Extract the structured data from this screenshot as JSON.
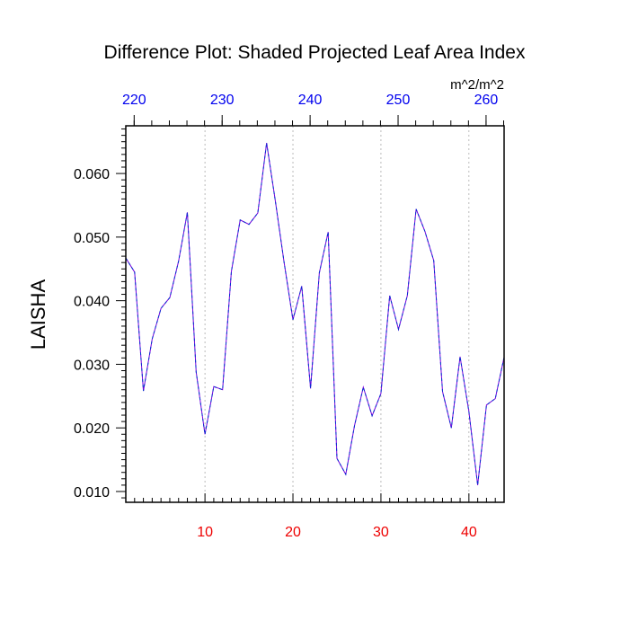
{
  "chart_data": {
    "type": "line",
    "title": "Difference Plot: Shaded Projected Leaf Area Index",
    "units": "m^2/m^2",
    "ylabel": "LAISHA",
    "xlim": [
      1,
      44
    ],
    "ylim": [
      0.0083,
      0.0675
    ],
    "x": [
      1,
      2,
      3,
      4,
      5,
      6,
      7,
      8,
      9,
      10,
      11,
      12,
      13,
      14,
      15,
      16,
      17,
      18,
      19,
      20,
      21,
      22,
      23,
      24,
      25,
      26,
      27,
      28,
      29,
      30,
      31,
      32,
      33,
      34,
      35,
      36,
      37,
      38,
      39,
      40,
      41,
      42,
      43,
      44
    ],
    "series": [
      {
        "values": [
          0.0467,
          0.0445,
          0.0258,
          0.034,
          0.0388,
          0.0405,
          0.0462,
          0.0539,
          0.0288,
          0.019,
          0.0265,
          0.026,
          0.0446,
          0.0527,
          0.052,
          0.0538,
          0.0648,
          0.0557,
          0.046,
          0.037,
          0.0423,
          0.0262,
          0.0444,
          0.0508,
          0.0152,
          0.0127,
          0.0204,
          0.0264,
          0.0219,
          0.0254,
          0.0408,
          0.0355,
          0.0408,
          0.0544,
          0.0509,
          0.0463,
          0.0257,
          0.02,
          0.0312,
          0.0226,
          0.011,
          0.0236,
          0.0246,
          0.0311
        ],
        "color": "#7700dd",
        "dash_color": "#0033cc"
      }
    ],
    "bottom_axis": {
      "ticks": [
        10,
        20,
        30,
        40
      ],
      "labels": [
        "10",
        "20",
        "30",
        "40"
      ],
      "color": "#ee0000"
    },
    "top_axis": {
      "ticks_at_x": [
        1.95,
        11.95,
        21.95,
        31.95,
        41.95
      ],
      "labels": [
        "220",
        "230",
        "240",
        "250",
        "260"
      ],
      "color": "#0000ee"
    },
    "left_axis": {
      "ticks": [
        0.01,
        0.02,
        0.03,
        0.04,
        0.05,
        0.06
      ],
      "labels": [
        "0.010",
        "0.020",
        "0.030",
        "0.040",
        "0.050",
        "0.060"
      ],
      "color": "#000000"
    },
    "grid": "vertical-dotted",
    "grid_color": "#aaaaaa"
  }
}
